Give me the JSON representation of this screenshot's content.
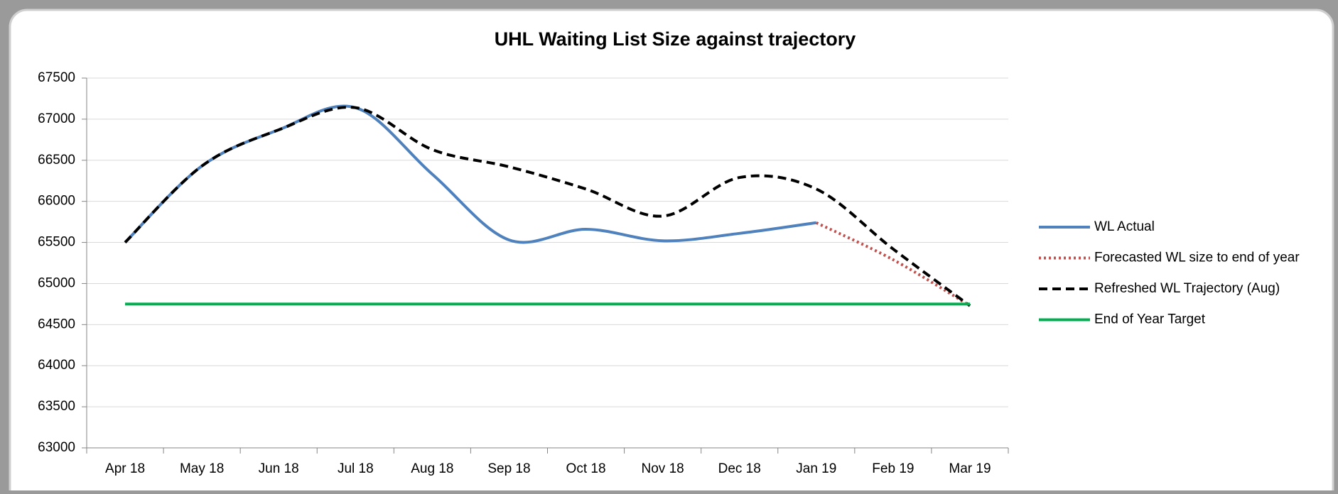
{
  "chart_data": {
    "type": "line",
    "title": "UHL Waiting List Size against trajectory",
    "categories": [
      "Apr 18",
      "May 18",
      "Jun 18",
      "Jul 18",
      "Aug 18",
      "Sep 18",
      "Oct 18",
      "Nov 18",
      "Dec 18",
      "Jan 19",
      "Feb 19",
      "Mar 19"
    ],
    "series": [
      {
        "name": "WL Actual",
        "color": "#4f81bd",
        "dash": "solid",
        "values": [
          65500,
          66430,
          66870,
          67140,
          66330,
          65530,
          65660,
          65520,
          65610,
          65740,
          null,
          null
        ]
      },
      {
        "name": "Forecasted WL size to end of year",
        "color": "#c0504d",
        "dash": "dotted",
        "values": [
          null,
          null,
          null,
          null,
          null,
          null,
          null,
          null,
          null,
          65740,
          65290,
          64730
        ]
      },
      {
        "name": "Refreshed WL Trajectory (Aug)",
        "color": "#000000",
        "dash": "dashed",
        "values": [
          65500,
          66430,
          66870,
          67140,
          66630,
          66420,
          66150,
          65820,
          66290,
          66150,
          65420,
          64730
        ]
      },
      {
        "name": "End of Year Target",
        "color": "#00b050",
        "dash": "solid",
        "values": [
          64750,
          64750,
          64750,
          64750,
          64750,
          64750,
          64750,
          64750,
          64750,
          64750,
          64750,
          64750
        ]
      }
    ],
    "ylim": [
      63000,
      67500
    ],
    "yticks": [
      63000,
      63500,
      64000,
      64500,
      65000,
      65500,
      66000,
      66500,
      67000,
      67500
    ],
    "grid": true,
    "legend": "right"
  }
}
